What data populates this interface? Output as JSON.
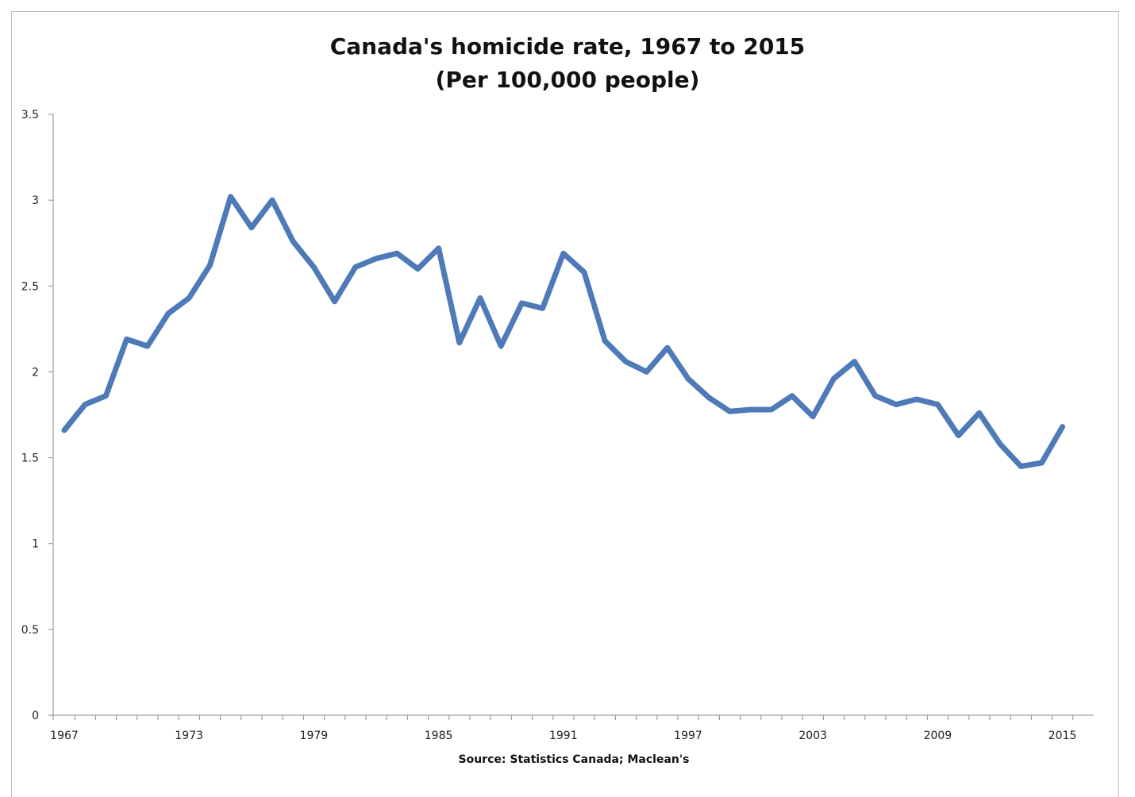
{
  "chart_data": {
    "type": "line",
    "title": "Canada's homicide rate, 1967 to 2015",
    "subtitle": "(Per 100,000 people)",
    "source": "Source: Statistics Canada; Maclean's",
    "xlabel": "",
    "ylabel": "",
    "xlim": [
      1967,
      2015
    ],
    "ylim": [
      0,
      3.5
    ],
    "y_ticks": [
      0,
      0.5,
      1,
      1.5,
      2,
      2.5,
      3,
      3.5
    ],
    "y_tick_labels": [
      "0",
      "0.5",
      "1",
      "1.5",
      "2",
      "2.5",
      "3",
      "3.5"
    ],
    "x_tick_labels": [
      "1967",
      "1973",
      "1979",
      "1985",
      "1991",
      "1997",
      "2003",
      "2009",
      "2015"
    ],
    "grid": false,
    "legend": "none",
    "line_color": "#4f7ab8",
    "x": [
      1967,
      1968,
      1969,
      1970,
      1971,
      1972,
      1973,
      1974,
      1975,
      1976,
      1977,
      1978,
      1979,
      1980,
      1981,
      1982,
      1983,
      1984,
      1985,
      1986,
      1987,
      1988,
      1989,
      1990,
      1991,
      1992,
      1993,
      1994,
      1995,
      1996,
      1997,
      1998,
      1999,
      2000,
      2001,
      2002,
      2003,
      2004,
      2005,
      2006,
      2007,
      2008,
      2009,
      2010,
      2011,
      2012,
      2013,
      2014,
      2015
    ],
    "values": [
      1.66,
      1.81,
      1.86,
      2.19,
      2.15,
      2.34,
      2.43,
      2.62,
      3.02,
      2.84,
      3.0,
      2.76,
      2.61,
      2.41,
      2.61,
      2.66,
      2.69,
      2.6,
      2.72,
      2.17,
      2.43,
      2.15,
      2.4,
      2.37,
      2.69,
      2.58,
      2.18,
      2.06,
      2.0,
      2.14,
      1.96,
      1.85,
      1.77,
      1.78,
      1.78,
      1.86,
      1.74,
      1.96,
      2.06,
      1.86,
      1.81,
      1.84,
      1.81,
      1.63,
      1.76,
      1.58,
      1.45,
      1.47,
      1.68
    ]
  }
}
